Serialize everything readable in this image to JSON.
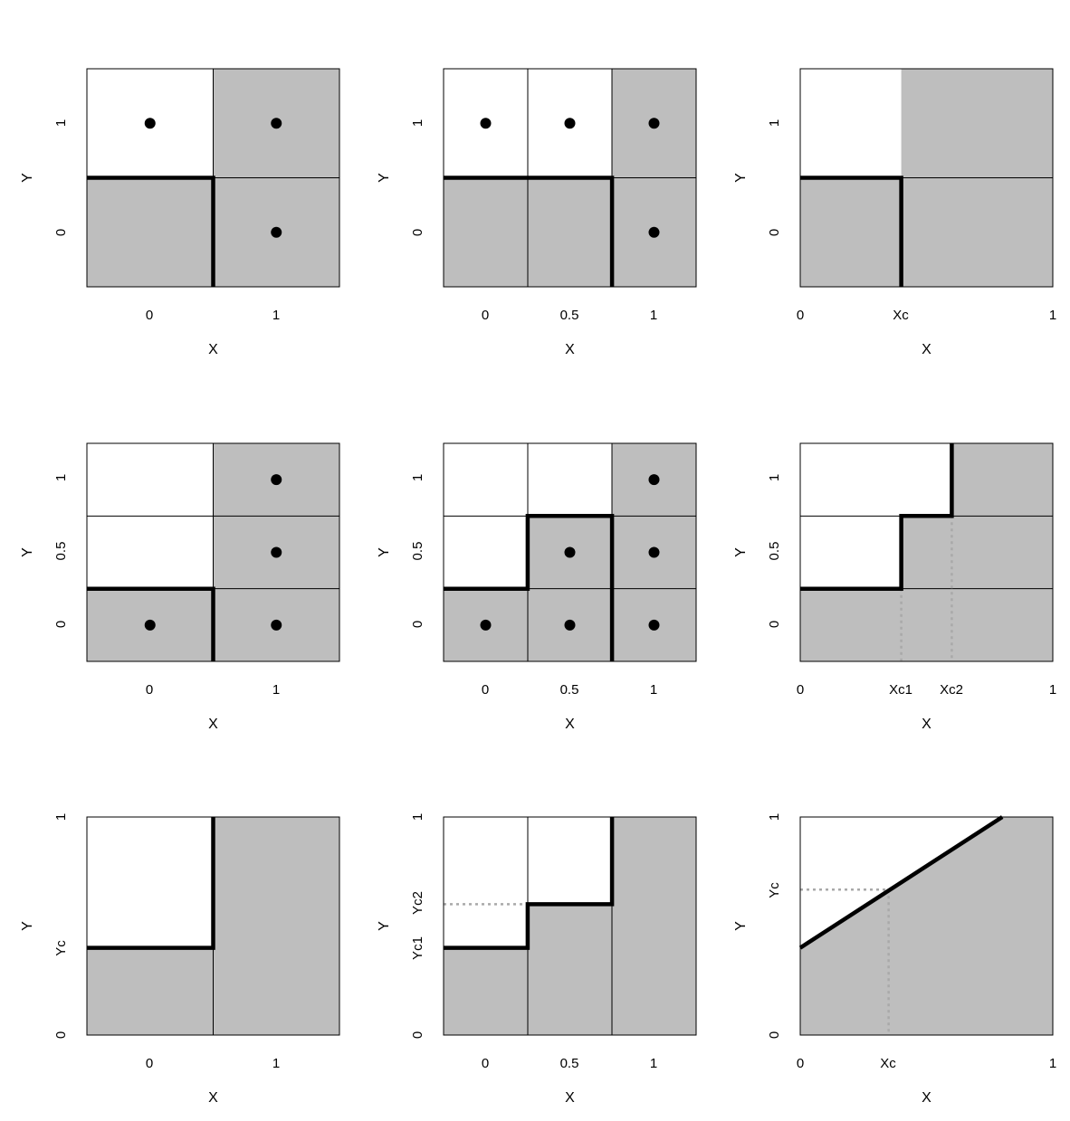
{
  "colors": {
    "shade": "#bebebe",
    "border": "#000000",
    "guide": "#a9a9a9",
    "background": "#ffffff"
  },
  "panels": [
    {
      "id": "p1",
      "xlabel": "X",
      "ylabel": "Y",
      "x_ticks": [
        "0",
        "1"
      ],
      "y_ticks": [
        "0",
        "1"
      ],
      "columns": 2,
      "rows": 2,
      "shaded_cells": [
        [
          1,
          0
        ],
        [
          0,
          1
        ],
        [
          1,
          1
        ]
      ],
      "boundary": [
        [
          0,
          0.5
        ],
        [
          0.5,
          0.5
        ],
        [
          0.5,
          1
        ]
      ],
      "points": [
        [
          0,
          0
        ],
        [
          1,
          0
        ],
        [
          1,
          1
        ]
      ],
      "guides": []
    },
    {
      "id": "p2",
      "xlabel": "X",
      "ylabel": "Y",
      "x_ticks": [
        "0",
        "0.5",
        "1"
      ],
      "y_ticks": [
        "0",
        "1"
      ],
      "columns": 3,
      "rows": 2,
      "shaded_cells": [
        [
          2,
          0
        ],
        [
          0,
          1
        ],
        [
          1,
          1
        ],
        [
          2,
          1
        ]
      ],
      "boundary": [
        [
          0,
          0.5
        ],
        [
          0.667,
          0.5
        ],
        [
          0.667,
          1
        ]
      ],
      "points": [
        [
          0,
          0
        ],
        [
          1,
          0
        ],
        [
          2,
          0
        ],
        [
          2,
          1
        ]
      ],
      "guides": []
    },
    {
      "id": "p3",
      "xlabel": "X",
      "ylabel": "Y",
      "x_ticks": [
        "0",
        "Xc",
        "1"
      ],
      "y_ticks": [
        "0",
        "1"
      ],
      "columns": 1,
      "rows": 2,
      "shaded_region": [
        [
          0.4,
          0
        ],
        [
          1,
          0
        ],
        [
          1,
          1
        ],
        [
          0,
          1
        ],
        [
          0,
          0.5
        ],
        [
          0.4,
          0.5
        ]
      ],
      "boundary": [
        [
          0,
          0.5
        ],
        [
          0.4,
          0.5
        ],
        [
          0.4,
          1
        ]
      ],
      "points": [],
      "guides": [
        [
          [
            0.4,
            0.5
          ],
          [
            0.4,
            1
          ]
        ]
      ]
    },
    {
      "id": "p4",
      "xlabel": "X",
      "ylabel": "Y",
      "x_ticks": [
        "0",
        "1"
      ],
      "y_ticks": [
        "0",
        "0.5",
        "1"
      ],
      "columns": 2,
      "rows": 3,
      "shaded_cells": [
        [
          1,
          0
        ],
        [
          1,
          1
        ],
        [
          0,
          2
        ],
        [
          1,
          2
        ]
      ],
      "boundary": [
        [
          0,
          0.667
        ],
        [
          0.5,
          0.667
        ],
        [
          0.5,
          1
        ]
      ],
      "points": [
        [
          1,
          0
        ],
        [
          1,
          1
        ],
        [
          0,
          2
        ],
        [
          1,
          2
        ]
      ],
      "guides": []
    },
    {
      "id": "p5",
      "xlabel": "X",
      "ylabel": "Y",
      "x_ticks": [
        "0",
        "0.5",
        "1"
      ],
      "y_ticks": [
        "0",
        "0.5",
        "1"
      ],
      "columns": 3,
      "rows": 3,
      "shaded_cells": [
        [
          2,
          0
        ],
        [
          1,
          1
        ],
        [
          2,
          1
        ],
        [
          0,
          2
        ],
        [
          1,
          2
        ],
        [
          2,
          2
        ]
      ],
      "boundary": [
        [
          0,
          0.667
        ],
        [
          0.333,
          0.667
        ],
        [
          0.333,
          0.333
        ],
        [
          0.667,
          0.333
        ],
        [
          0.667,
          1
        ]
      ],
      "points": [
        [
          2,
          0
        ],
        [
          1,
          1
        ],
        [
          2,
          1
        ],
        [
          0,
          2
        ],
        [
          1,
          2
        ],
        [
          2,
          2
        ]
      ],
      "guides": []
    },
    {
      "id": "p6",
      "xlabel": "X",
      "ylabel": "Y",
      "x_ticks": [
        "0",
        "Xc1",
        "Xc2",
        "1"
      ],
      "y_ticks": [
        "0",
        "0.5",
        "1"
      ],
      "columns": 1,
      "rows": 3,
      "shaded_region": [
        [
          0.6,
          0
        ],
        [
          1,
          0
        ],
        [
          1,
          1
        ],
        [
          0,
          1
        ],
        [
          0,
          0.667
        ],
        [
          0.4,
          0.667
        ],
        [
          0.4,
          0.333
        ],
        [
          0.6,
          0.333
        ]
      ],
      "boundary": [
        [
          0,
          0.667
        ],
        [
          0.4,
          0.667
        ],
        [
          0.4,
          0.333
        ],
        [
          0.6,
          0.333
        ],
        [
          0.6,
          0
        ]
      ],
      "points": [],
      "guides": [
        [
          [
            0.4,
            0.667
          ],
          [
            0.4,
            1
          ]
        ],
        [
          [
            0.6,
            0.333
          ],
          [
            0.6,
            1
          ]
        ]
      ]
    },
    {
      "id": "p7",
      "xlabel": "X",
      "ylabel": "Y",
      "x_ticks": [
        "0",
        "1"
      ],
      "y_ticks": [
        "0",
        "Yc",
        "1"
      ],
      "columns": 2,
      "rows": 1,
      "shaded_region": [
        [
          0.5,
          0
        ],
        [
          1,
          0
        ],
        [
          1,
          1
        ],
        [
          0,
          1
        ],
        [
          0,
          0.6
        ],
        [
          0.5,
          0.6
        ]
      ],
      "boundary": [
        [
          0,
          0.6
        ],
        [
          0.5,
          0.6
        ],
        [
          0.5,
          0
        ]
      ],
      "points": [],
      "guides": []
    },
    {
      "id": "p8",
      "xlabel": "X",
      "ylabel": "Y",
      "x_ticks": [
        "0",
        "0.5",
        "1"
      ],
      "y_ticks": [
        "0",
        "Yc1",
        "Yc2",
        "1"
      ],
      "columns": 3,
      "rows": 1,
      "shaded_region": [
        [
          0.667,
          0
        ],
        [
          1,
          0
        ],
        [
          1,
          1
        ],
        [
          0,
          1
        ],
        [
          0,
          0.6
        ],
        [
          0.333,
          0.6
        ],
        [
          0.333,
          0.4
        ],
        [
          0.667,
          0.4
        ]
      ],
      "boundary": [
        [
          0,
          0.6
        ],
        [
          0.333,
          0.6
        ],
        [
          0.333,
          0.4
        ],
        [
          0.667,
          0.4
        ],
        [
          0.667,
          0
        ]
      ],
      "points": [],
      "guides": [
        [
          [
            0,
            0.4
          ],
          [
            0.333,
            0.4
          ]
        ]
      ]
    },
    {
      "id": "p9",
      "xlabel": "X",
      "ylabel": "Y",
      "x_ticks": [
        "0",
        "Xc",
        "1"
      ],
      "y_ticks": [
        "0",
        "Yc",
        "1"
      ],
      "columns": 1,
      "rows": 1,
      "shaded_region": [
        [
          0.8,
          0
        ],
        [
          1,
          0
        ],
        [
          1,
          1
        ],
        [
          0,
          1
        ],
        [
          0,
          0.6
        ]
      ],
      "boundary": [
        [
          0,
          0.6
        ],
        [
          0.8,
          0
        ]
      ],
      "points": [],
      "guides": [
        [
          [
            0,
            0.333
          ],
          [
            0.35,
            0.333
          ]
        ],
        [
          [
            0.35,
            0.333
          ],
          [
            0.35,
            1
          ]
        ]
      ]
    }
  ]
}
